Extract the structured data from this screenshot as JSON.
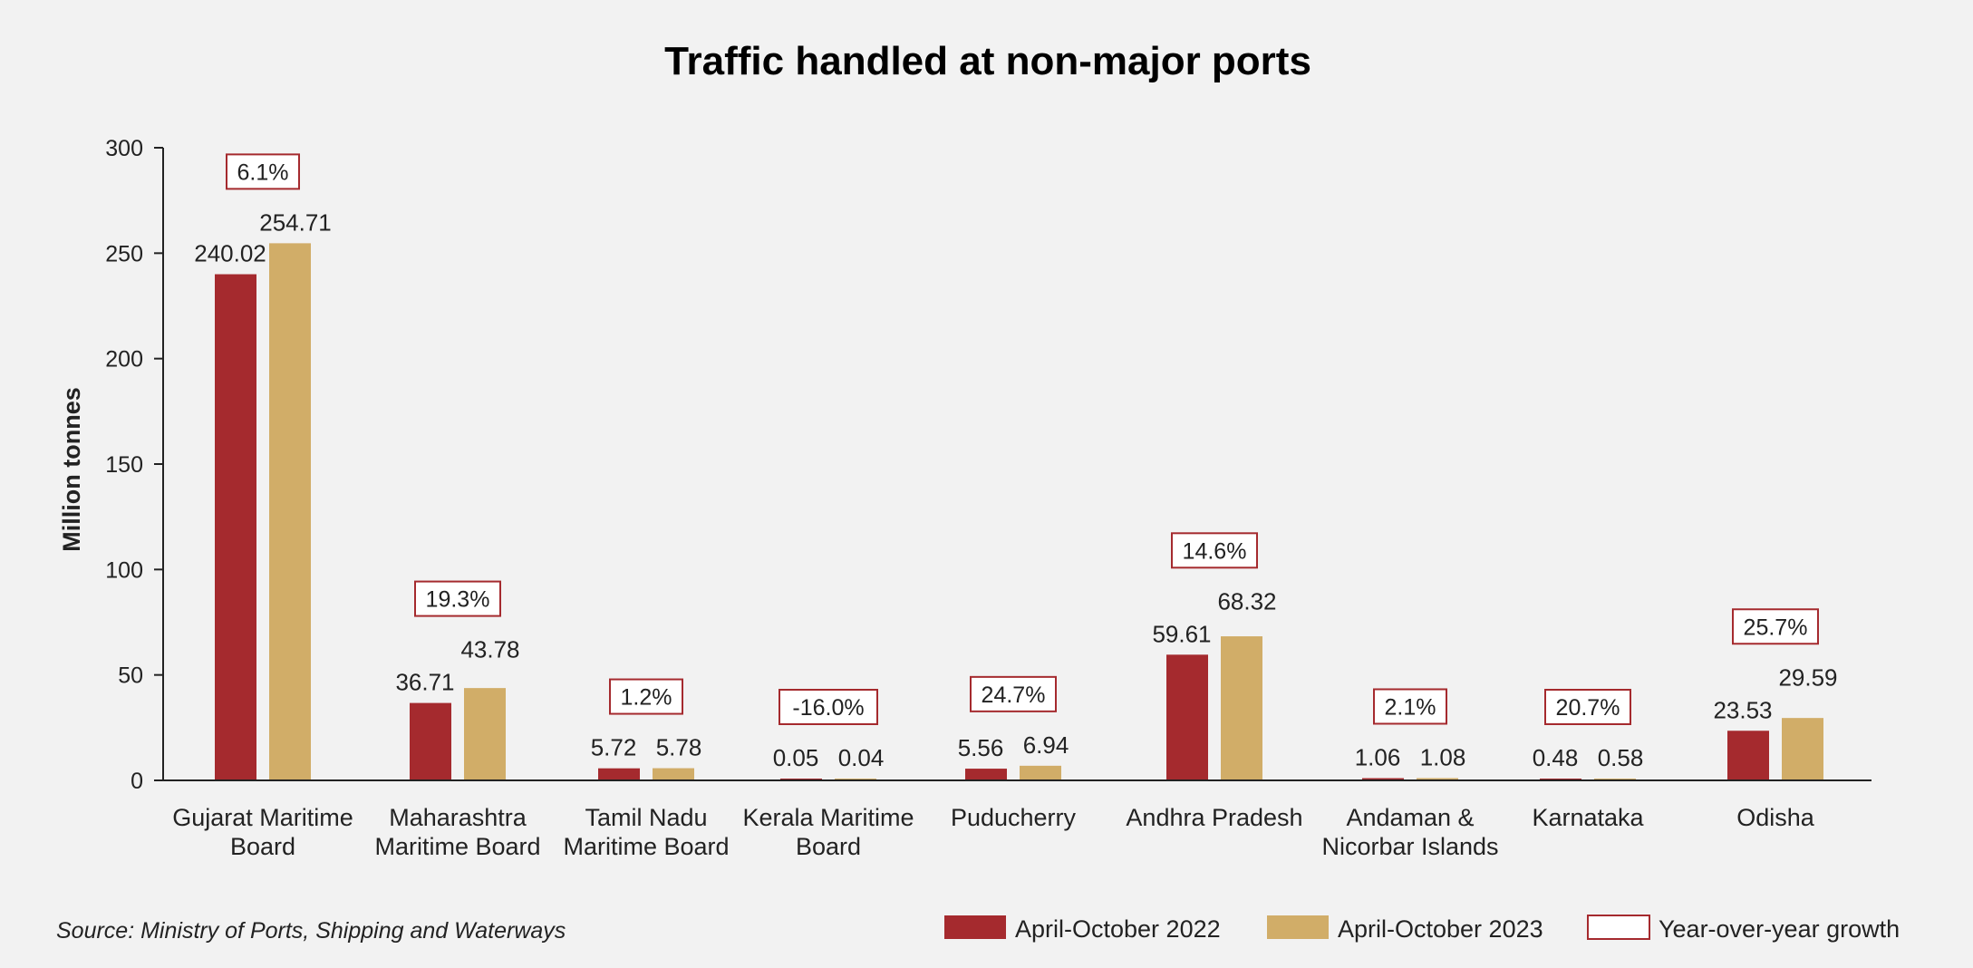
{
  "chart_data": {
    "type": "bar",
    "title": "Traffic handled at non-major ports",
    "ylabel": "Million tonnes",
    "xlabel": "",
    "ylim": [
      0,
      300
    ],
    "yticks": [
      0,
      50,
      100,
      150,
      200,
      250,
      300
    ],
    "categories": [
      [
        "Gujarat Maritime",
        "Board"
      ],
      [
        "Maharashtra",
        "Maritime Board"
      ],
      [
        "Tamil Nadu",
        "Maritime Board"
      ],
      [
        "Kerala Maritime",
        "Board"
      ],
      [
        "Puducherry"
      ],
      [
        "Andhra Pradesh"
      ],
      [
        "Andaman &",
        "Nicorbar Islands"
      ],
      [
        "Karnataka"
      ],
      [
        "Odisha"
      ]
    ],
    "series": [
      {
        "name": "April-October 2022",
        "color": "#a52a2e",
        "values": [
          240.02,
          36.71,
          5.72,
          0.05,
          5.56,
          59.61,
          1.06,
          0.48,
          23.53
        ],
        "labels": [
          "240.02",
          "36.71",
          "5.72",
          "0.05",
          "5.56",
          "59.61",
          "1.06",
          "0.48",
          "23.53"
        ]
      },
      {
        "name": "April-October 2023",
        "color": "#d1ad68",
        "values": [
          254.71,
          43.78,
          5.78,
          0.04,
          6.94,
          68.32,
          1.08,
          0.58,
          29.59
        ],
        "labels": [
          "254.71",
          "43.78",
          "5.78",
          "0.04",
          "6.94",
          "68.32",
          "1.08",
          "0.58",
          "29.59"
        ]
      }
    ],
    "growth": {
      "name": "Year-over-year growth",
      "values": [
        6.1,
        19.3,
        1.2,
        -16.0,
        24.7,
        14.6,
        2.1,
        20.7,
        25.7
      ],
      "labels": [
        "6.1%",
        "19.3%",
        "1.2%",
        "-16.0%",
        "24.7%",
        "14.6%",
        "2.1%",
        "20.7%",
        "25.7%"
      ],
      "border_color": "#a52a2e"
    },
    "source": "Source: Ministry of Ports, Shipping and Waterways",
    "legend_position": "bottom-right",
    "grid": false
  }
}
